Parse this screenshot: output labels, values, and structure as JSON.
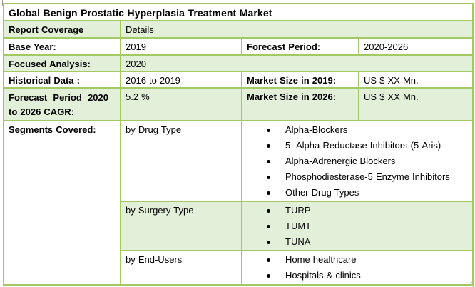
{
  "title": "Global Benign Prostatic Hyperplasia Treatment Market",
  "colors": {
    "table_border": "#a3c964",
    "row_fill_green": "#e2efd9",
    "row_fill_white": "#ffffff",
    "text": "#000000"
  },
  "rows": {
    "report_coverage": {
      "label": "Report Coverage",
      "value": "Details"
    },
    "base_year": {
      "label": "Base Year:",
      "value": "2019"
    },
    "forecast_period": {
      "label": "Forecast Period:",
      "value": "2020-2026"
    },
    "focused_analysis": {
      "label": "Focused Analysis:",
      "value": "2020"
    },
    "historical_data": {
      "label": "Historical Data :",
      "value": "2016 to 2019"
    },
    "market_size_2019": {
      "label": "Market Size in 2019:",
      "value": "US $ XX Mn."
    },
    "cagr": {
      "label": "Forecast Period 2020 to 2026 CAGR:",
      "value": "5.2 %"
    },
    "market_size_2026": {
      "label": "Market Size in 2026:",
      "value": "US $ XX Mn."
    }
  },
  "segments": {
    "label": "Segments Covered:",
    "groups": [
      {
        "name": "by Drug Type",
        "items": [
          "Alpha-Blockers",
          "5- Alpha-Reductase Inhibitors (5-Aris)",
          "Alpha-Adrenergic Blockers",
          "Phosphodiesterase-5 Enzyme Inhibitors",
          "Other Drug Types"
        ]
      },
      {
        "name": "by Surgery Type",
        "items": [
          "TURP",
          "TUMT",
          "TUNA"
        ]
      },
      {
        "name": "by End-Users",
        "items": [
          "Home healthcare",
          "Hospitals & clinics"
        ]
      }
    ]
  }
}
